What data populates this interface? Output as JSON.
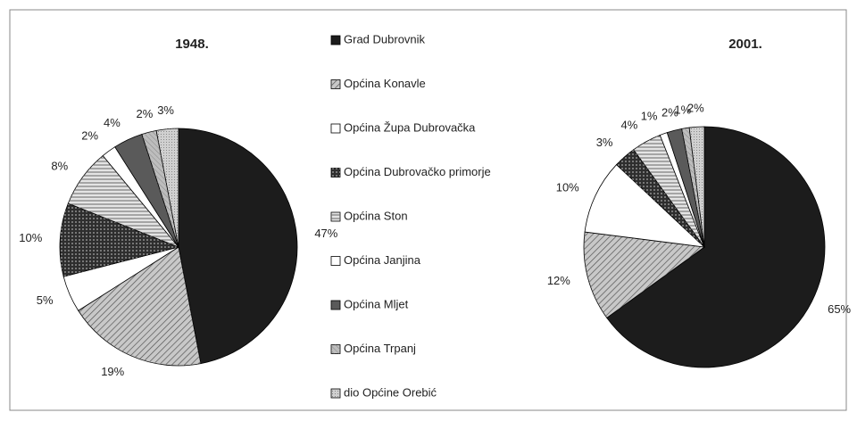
{
  "chart_data": {
    "type": "pie",
    "categories": [
      "Grad Dubrovnik",
      "Općina Konavle",
      "Općina Župa Dubrovačka",
      "Općina Dubrovačko primorje",
      "Općina Ston",
      "Općina Janjina",
      "Općina Mljet",
      "Općina Trpanj",
      "dio Općine Orebić"
    ],
    "colors": [
      "#1c1c1c",
      "#c8c8c8",
      "#ffffff",
      "#2e2e2e",
      "#e4e4e4",
      "#ffffff",
      "#5a5a5a",
      "#bdbdbd",
      "#d0d0d0"
    ],
    "series": [
      {
        "name": "1948.",
        "values": [
          47,
          19,
          5,
          10,
          8,
          2,
          4,
          2,
          3
        ],
        "value_labels": [
          "47%",
          "19%",
          "5%",
          "10%",
          "8%",
          "2%",
          "4%",
          "2%",
          "3%"
        ]
      },
      {
        "name": "2001.",
        "values": [
          65,
          12,
          10,
          3,
          4,
          1,
          2,
          1,
          2
        ],
        "value_labels": [
          "65%",
          "12%",
          "10%",
          "3%",
          "4%",
          "1%",
          "2%",
          "1%",
          "2%"
        ]
      }
    ]
  }
}
